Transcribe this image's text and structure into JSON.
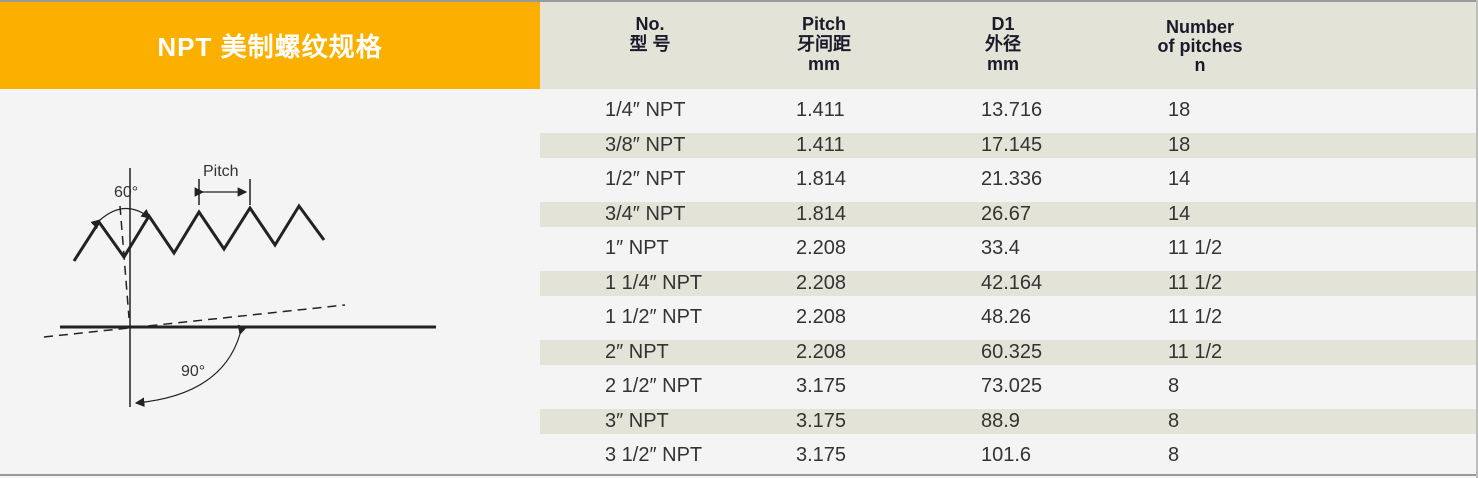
{
  "title": "NPT  美制螺纹规格",
  "colors": {
    "title_bg": "#fbb000",
    "header_bg": "#e3e3d8",
    "stripe": "#e3e3d8"
  },
  "headers": {
    "no": [
      "No.",
      "型 号"
    ],
    "pitch": [
      "Pitch",
      "牙间距",
      "mm"
    ],
    "d1": [
      "D1",
      "外径",
      "mm"
    ],
    "n": [
      "Number",
      "of pitches",
      "n"
    ]
  },
  "rows": [
    {
      "no": "1/4″ NPT",
      "pitch": "1.411",
      "d1": "13.716",
      "n": "18"
    },
    {
      "no": "3/8″ NPT",
      "pitch": "1.411",
      "d1": "17.145",
      "n": "18"
    },
    {
      "no": "1/2″ NPT",
      "pitch": "1.814",
      "d1": "21.336",
      "n": "14"
    },
    {
      "no": "3/4″ NPT",
      "pitch": "1.814",
      "d1": "26.67",
      "n": "14"
    },
    {
      "no": "1″ NPT",
      "pitch": "2.208",
      "d1": "33.4",
      "n": "11 1/2"
    },
    {
      "no": "1 1/4″ NPT",
      "pitch": "2.208",
      "d1": "42.164",
      "n": "11 1/2"
    },
    {
      "no": "1 1/2″ NPT",
      "pitch": "2.208",
      "d1": "48.26",
      "n": "11 1/2"
    },
    {
      "no": "2″ NPT",
      "pitch": "2.208",
      "d1": "60.325",
      "n": "11 1/2"
    },
    {
      "no": "2 1/2″ NPT",
      "pitch": "3.175",
      "d1": "73.025",
      "n": "8"
    },
    {
      "no": "3″ NPT",
      "pitch": "3.175",
      "d1": "88.9",
      "n": "8"
    },
    {
      "no": "3 1/2″ NPT",
      "pitch": "3.175",
      "d1": "101.6",
      "n": "8"
    }
  ],
  "diagram": {
    "pitch_label": "Pitch",
    "angle_60": "60°",
    "angle_90": "90°"
  }
}
